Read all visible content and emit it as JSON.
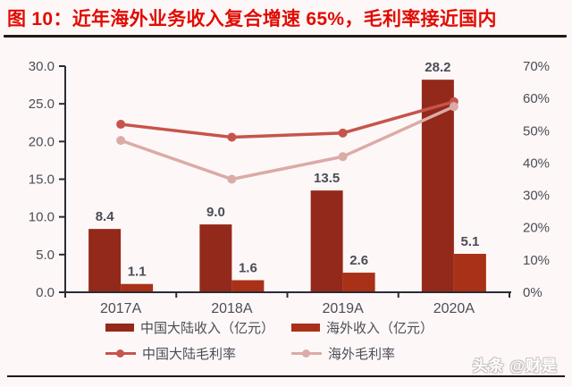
{
  "title": "图 10：近年海外业务收入复合增速 65%，毛利率接近国内",
  "watermark": "头条 @财是",
  "colors": {
    "title_red": "#e10c04",
    "domestic_bar": "#93291a",
    "overseas_bar": "#a93118",
    "domestic_line": "#c6544d",
    "overseas_line": "#dbaba7",
    "axis": "#2b2b33",
    "label_gray": "#4c4c57",
    "background": "#fdf8f7",
    "rule": "#241712"
  },
  "chart_data": {
    "type": "bar+line",
    "categories": [
      "2017A",
      "2018A",
      "2019A",
      "2020A"
    ],
    "series": [
      {
        "name": "中国大陆收入（亿元）",
        "type": "bar",
        "axis": "left",
        "color": "#93291a",
        "values": [
          8.4,
          9.0,
          13.5,
          28.2
        ],
        "labels": [
          "8.4",
          "9.0",
          "13.5",
          "28.2"
        ]
      },
      {
        "name": "海外收入（亿元）",
        "type": "bar",
        "axis": "left",
        "color": "#a93118",
        "values": [
          1.1,
          1.6,
          2.6,
          5.1
        ],
        "labels": [
          "1.1",
          "1.6",
          "2.6",
          "5.1"
        ]
      },
      {
        "name": "中国大陆毛利率",
        "type": "line",
        "axis": "right",
        "color": "#c6544d",
        "values": [
          52.0,
          48.0,
          49.3,
          59.0
        ]
      },
      {
        "name": "海外毛利率",
        "type": "line",
        "axis": "right",
        "color": "#dbaba7",
        "values": [
          47.0,
          35.0,
          42.0,
          57.5
        ]
      }
    ],
    "left_axis": {
      "min": 0,
      "max": 30,
      "step": 5,
      "ticks": [
        "30.0",
        "25.0",
        "20.0",
        "15.0",
        "10.0",
        "5.0",
        "0.0"
      ]
    },
    "right_axis": {
      "min": 0,
      "max": 70,
      "step": 10,
      "ticks": [
        "70%",
        "60%",
        "50%",
        "40%",
        "30%",
        "20%",
        "10%",
        "0%"
      ]
    },
    "grid": false,
    "legend_position": "bottom"
  }
}
